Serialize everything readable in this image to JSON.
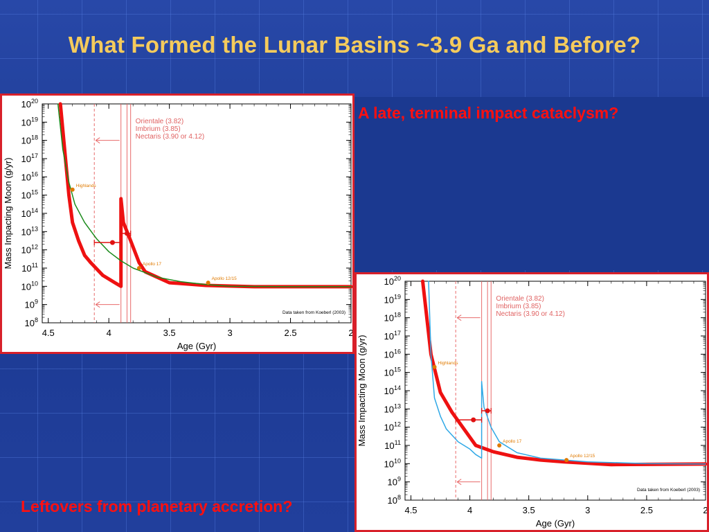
{
  "slide": {
    "title": "What Formed the Lunar Basins ~3.9 Ga and Before?",
    "caption_cataclysm": "A late, terminal impact cataclysm?",
    "caption_accretion": "Leftovers from planetary accretion?",
    "colors": {
      "background": "#1f3e98",
      "title": "#f5cb5c",
      "caption": "#ff1010",
      "panel_border": "#d8202a"
    }
  },
  "chart_data": [
    {
      "type": "line",
      "xlabel": "Age (Gyr)",
      "ylabel": "Mass Impacting Moon (g/yr)",
      "xlim": [
        4.55,
        2.0
      ],
      "x_reversed": true,
      "ylim_log10": [
        8,
        20
      ],
      "y_scale": "log",
      "x_ticks": [
        "4.5",
        "4",
        "3.5",
        "3",
        "2.5",
        "2"
      ],
      "y_ticks": [
        "10^8",
        "10^9",
        "10^10",
        "10^11",
        "10^12",
        "10^13",
        "10^14",
        "10^15",
        "10^16",
        "10^17",
        "10^18",
        "10^19",
        "10^20"
      ],
      "legend": [
        "Orientale (3.82)",
        "Imbrium (3.85)",
        "Nectaris (3.90 or 4.12)"
      ],
      "credit": "Data taken from Koeberl (2003)",
      "colors": {
        "thick": "#ee1111",
        "thin": "#1a8a1a",
        "basin_lines": "#e86a6a",
        "annotation": "#e07a00"
      },
      "series": [
        {
          "style": "thick",
          "points": [
            [
              4.4,
              20
            ],
            [
              4.33,
              15
            ],
            [
              4.3,
              13.5
            ],
            [
              4.25,
              12.5
            ],
            [
              4.2,
              11.7
            ],
            [
              4.15,
              11.3
            ],
            [
              4.05,
              10.6
            ],
            [
              3.95,
              10.2
            ],
            [
              3.9,
              10.0
            ],
            [
              3.9,
              14.8
            ],
            [
              3.88,
              13.5
            ],
            [
              3.82,
              12.5
            ],
            [
              3.75,
              11.3
            ],
            [
              3.7,
              10.8
            ],
            [
              3.5,
              10.2
            ],
            [
              3.2,
              10.05
            ],
            [
              2.8,
              9.98
            ],
            [
              2.0,
              9.98
            ]
          ]
        },
        {
          "style": "thin",
          "points": [
            [
              4.42,
              20
            ],
            [
              4.38,
              17.5
            ],
            [
              4.33,
              15.7
            ],
            [
              4.28,
              14.5
            ],
            [
              4.2,
              13.5
            ],
            [
              4.1,
              12.6
            ],
            [
              4.0,
              11.9
            ],
            [
              3.9,
              11.4
            ],
            [
              3.8,
              11.0
            ],
            [
              3.7,
              10.75
            ],
            [
              3.6,
              10.5
            ],
            [
              3.4,
              10.25
            ],
            [
              3.2,
              10.1
            ],
            [
              3.0,
              10.0
            ],
            [
              2.5,
              9.98
            ],
            [
              2.0,
              9.98
            ]
          ]
        }
      ],
      "samples": [
        {
          "label": "Highlands",
          "x": 4.3,
          "y": 15.3
        },
        {
          "label": "Apollo 17",
          "x": 3.75,
          "y": 11.0
        },
        {
          "label": "Apollo 12/15",
          "x": 3.18,
          "y": 10.2
        }
      ],
      "basin_ages": [
        3.82,
        3.85,
        3.9
      ],
      "nectaris_alt": 4.12,
      "markers": [
        {
          "x": 3.97,
          "y": 12.4,
          "x_err": [
            4.12,
            3.9
          ]
        },
        {
          "x": 3.85,
          "y": 12.9,
          "x_err": [
            3.9,
            3.82
          ]
        }
      ]
    },
    {
      "type": "line",
      "xlabel": "Age (Gyr)",
      "ylabel": "Mass Impacting Moon (g/yr)",
      "xlim": [
        4.55,
        2.0
      ],
      "x_reversed": true,
      "ylim_log10": [
        8,
        20
      ],
      "y_scale": "log",
      "x_ticks": [
        "4.5",
        "4",
        "3.5",
        "3",
        "2.5",
        "2"
      ],
      "y_ticks": [
        "10^8",
        "10^9",
        "10^10",
        "10^11",
        "10^12",
        "10^13",
        "10^14",
        "10^15",
        "10^16",
        "10^17",
        "10^18",
        "10^19",
        "10^20"
      ],
      "legend": [
        "Orientale (3.82)",
        "Imbrium (3.85)",
        "Nectaris (3.90 or 4.12)"
      ],
      "credit": "Data taken from Koeberl (2003)",
      "colors": {
        "thick": "#ee1111",
        "thin": "#2fa8e6",
        "basin_lines": "#e86a6a",
        "annotation": "#e07a00"
      },
      "series": [
        {
          "style": "thick",
          "points": [
            [
              4.4,
              20
            ],
            [
              4.33,
              16
            ],
            [
              4.25,
              13.9
            ],
            [
              4.15,
              12.8
            ],
            [
              4.05,
              11.9
            ],
            [
              3.95,
              11.0
            ],
            [
              3.8,
              10.65
            ],
            [
              3.6,
              10.35
            ],
            [
              3.4,
              10.2
            ],
            [
              3.2,
              10.1
            ],
            [
              2.8,
              9.95
            ],
            [
              2.0,
              9.98
            ]
          ]
        },
        {
          "style": "thin",
          "points": [
            [
              4.35,
              20
            ],
            [
              4.33,
              16
            ],
            [
              4.3,
              13.6
            ],
            [
              4.25,
              12.6
            ],
            [
              4.2,
              11.9
            ],
            [
              4.1,
              11.2
            ],
            [
              4.0,
              10.8
            ],
            [
              3.95,
              10.5
            ],
            [
              3.9,
              10.3
            ],
            [
              3.9,
              14.5
            ],
            [
              3.88,
              13.1
            ],
            [
              3.82,
              12.0
            ],
            [
              3.75,
              11.2
            ],
            [
              3.6,
              10.6
            ],
            [
              3.4,
              10.3
            ],
            [
              3.0,
              10.1
            ],
            [
              2.5,
              10.0
            ],
            [
              2.0,
              9.98
            ]
          ]
        }
      ],
      "samples": [
        {
          "label": "Highlands",
          "x": 4.3,
          "y": 15.3
        },
        {
          "label": "Apollo 17",
          "x": 3.75,
          "y": 11.0
        },
        {
          "label": "Apollo 12/15",
          "x": 3.18,
          "y": 10.2
        }
      ],
      "basin_ages": [
        3.82,
        3.85,
        3.9
      ],
      "nectaris_alt": 4.12,
      "markers": [
        {
          "x": 3.97,
          "y": 12.4,
          "x_err": [
            4.12,
            3.9
          ]
        },
        {
          "x": 3.85,
          "y": 12.9,
          "x_err": [
            3.9,
            3.82
          ]
        }
      ]
    }
  ]
}
